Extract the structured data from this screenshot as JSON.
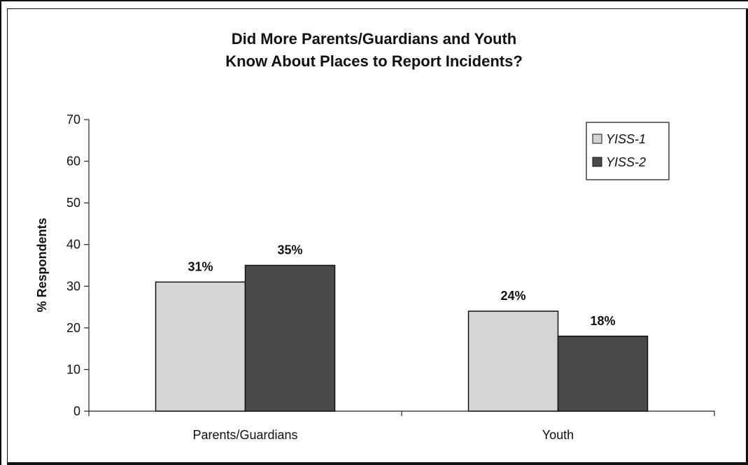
{
  "chart_data": {
    "type": "bar",
    "title_lines": [
      "Did More Parents/Guardians and Youth",
      "Know About Places to Report Incidents?"
    ],
    "xlabel": "",
    "ylabel": "% Respondents",
    "ylim": [
      0,
      70
    ],
    "yticks": [
      0,
      10,
      20,
      30,
      40,
      50,
      60,
      70
    ],
    "categories": [
      "Parents/Guardians",
      "Youth"
    ],
    "series": [
      {
        "name": "YISS-1",
        "values": [
          31,
          24
        ],
        "labels": [
          "31%",
          "24%"
        ],
        "color": "#d4d4d4"
      },
      {
        "name": "YISS-2",
        "values": [
          35,
          18
        ],
        "labels": [
          "35%",
          "18%"
        ],
        "color": "#4a4a4a"
      }
    ],
    "grid": false,
    "legend_position": "top-right"
  }
}
